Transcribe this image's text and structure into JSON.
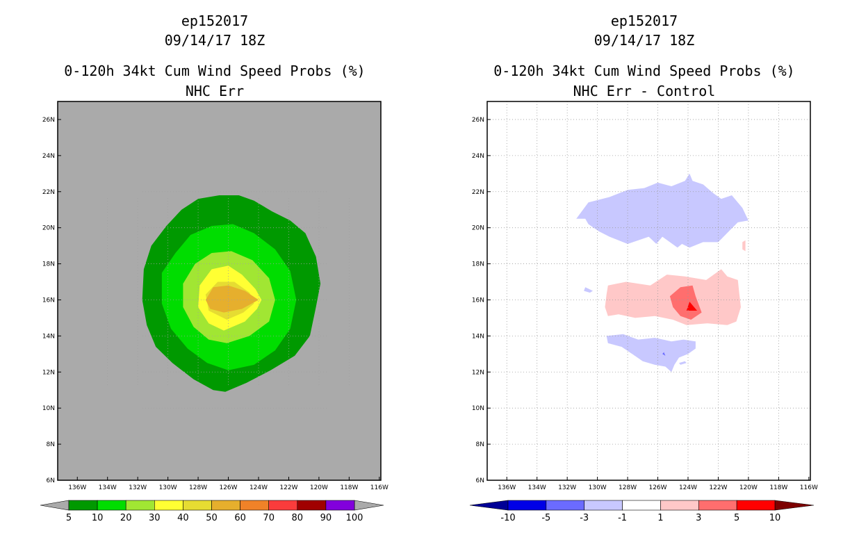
{
  "chart_data": [
    {
      "type": "filled-contour-map",
      "storm_id": "ep152017",
      "datetime": "09/14/17 18Z",
      "title": "0-120h 34kt Cum Wind Speed Probs (%)",
      "subtitle": "NHC Err",
      "background_color": "#aaaaaa",
      "lon_ticks": [
        "136W",
        "134W",
        "132W",
        "130W",
        "128W",
        "126W",
        "124W",
        "122W",
        "120W",
        "118W",
        "116W"
      ],
      "lat_ticks": [
        "6N",
        "8N",
        "10N",
        "12N",
        "14N",
        "16N",
        "18N",
        "20N",
        "22N",
        "24N",
        "26N"
      ],
      "lon_range": [
        -137.3,
        -115.9
      ],
      "lat_range": [
        6,
        27
      ],
      "grid": false,
      "colorbar": {
        "labels": [
          "5",
          "10",
          "20",
          "30",
          "40",
          "50",
          "60",
          "70",
          "80",
          "90",
          "100"
        ],
        "colors": [
          "#009900",
          "#00dd00",
          "#a1e633",
          "#ffff33",
          "#e6dc32",
          "#e6af2d",
          "#f08228",
          "#fa3c3c",
          "#a00000",
          "#8200dc"
        ],
        "under_color": "#aaaaaa",
        "over_color": "#aaaaaa"
      },
      "contours": [
        {
          "level": "5-10",
          "color": "#009900",
          "polygon": [
            [
              -126.2,
              10.9
            ],
            [
              -124.8,
              11.4
            ],
            [
              -123.2,
              12.1
            ],
            [
              -121.6,
              12.9
            ],
            [
              -120.6,
              14.0
            ],
            [
              -120.2,
              15.6
            ],
            [
              -119.9,
              16.9
            ],
            [
              -120.2,
              18.4
            ],
            [
              -120.9,
              19.7
            ],
            [
              -121.9,
              20.4
            ],
            [
              -123.1,
              20.9
            ],
            [
              -124.3,
              21.5
            ],
            [
              -125.3,
              21.8
            ],
            [
              -126.6,
              21.8
            ],
            [
              -128.0,
              21.6
            ],
            [
              -129.1,
              21.0
            ],
            [
              -130.1,
              20.1
            ],
            [
              -131.1,
              19.0
            ],
            [
              -131.6,
              17.7
            ],
            [
              -131.7,
              16.0
            ],
            [
              -131.4,
              14.6
            ],
            [
              -130.8,
              13.4
            ],
            [
              -129.7,
              12.5
            ],
            [
              -128.3,
              11.6
            ],
            [
              -127.0,
              11.0
            ]
          ]
        },
        {
          "level": "10-20",
          "color": "#00dd00",
          "polygon": [
            [
              -126.0,
              12.1
            ],
            [
              -124.3,
              12.4
            ],
            [
              -122.9,
              13.2
            ],
            [
              -121.9,
              14.4
            ],
            [
              -121.5,
              16.0
            ],
            [
              -121.9,
              17.6
            ],
            [
              -122.9,
              18.8
            ],
            [
              -124.3,
              19.7
            ],
            [
              -125.7,
              20.2
            ],
            [
              -127.1,
              20.1
            ],
            [
              -128.5,
              19.6
            ],
            [
              -129.5,
              18.6
            ],
            [
              -130.4,
              17.5
            ],
            [
              -130.4,
              15.8
            ],
            [
              -129.8,
              14.4
            ],
            [
              -128.7,
              13.3
            ],
            [
              -127.4,
              12.5
            ]
          ]
        },
        {
          "level": "20-30",
          "color": "#a1e633",
          "polygon": [
            [
              -126.1,
              13.6
            ],
            [
              -124.6,
              14.0
            ],
            [
              -123.3,
              14.8
            ],
            [
              -122.9,
              16.0
            ],
            [
              -123.3,
              17.2
            ],
            [
              -124.4,
              18.2
            ],
            [
              -125.8,
              18.7
            ],
            [
              -127.1,
              18.6
            ],
            [
              -128.2,
              18.0
            ],
            [
              -129.0,
              16.9
            ],
            [
              -129.0,
              15.6
            ],
            [
              -128.3,
              14.5
            ],
            [
              -127.3,
              13.8
            ]
          ]
        },
        {
          "level": "30-40",
          "color": "#ffff33",
          "polygon": [
            [
              -126.3,
              14.3
            ],
            [
              -124.9,
              14.8
            ],
            [
              -124.1,
              15.5
            ],
            [
              -123.8,
              16.0
            ],
            [
              -124.2,
              16.6
            ],
            [
              -125.1,
              17.4
            ],
            [
              -126.0,
              17.9
            ],
            [
              -127.1,
              17.7
            ],
            [
              -127.9,
              16.8
            ],
            [
              -128.0,
              15.6
            ],
            [
              -127.3,
              14.7
            ]
          ]
        },
        {
          "level": "40-50",
          "color": "#e6dc32",
          "polygon": [
            [
              -126.1,
              14.9
            ],
            [
              -125.0,
              15.3
            ],
            [
              -124.3,
              15.8
            ],
            [
              -124.6,
              16.4
            ],
            [
              -125.6,
              17.0
            ],
            [
              -126.7,
              17.0
            ],
            [
              -127.5,
              16.3
            ],
            [
              -127.3,
              15.4
            ]
          ]
        },
        {
          "level": "50-60",
          "color": "#e6af2d",
          "polygon": [
            [
              -126.3,
              15.3
            ],
            [
              -125.1,
              15.5
            ],
            [
              -124.0,
              16.0
            ],
            [
              -124.9,
              16.5
            ],
            [
              -126.0,
              16.8
            ],
            [
              -127.0,
              16.7
            ],
            [
              -127.5,
              16.0
            ],
            [
              -127.2,
              15.5
            ]
          ]
        }
      ]
    },
    {
      "type": "filled-contour-map",
      "storm_id": "ep152017",
      "datetime": "09/14/17 18Z",
      "title": "0-120h 34kt Cum Wind Speed Probs (%)",
      "subtitle": "NHC Err - Control",
      "background_color": "#ffffff",
      "lon_ticks": [
        "136W",
        "134W",
        "132W",
        "130W",
        "128W",
        "126W",
        "124W",
        "122W",
        "120W",
        "118W",
        "116W"
      ],
      "lat_ticks": [
        "6N",
        "8N",
        "10N",
        "12N",
        "14N",
        "16N",
        "18N",
        "20N",
        "22N",
        "24N",
        "26N"
      ],
      "lon_range": [
        -137.3,
        -115.9
      ],
      "lat_range": [
        6,
        27
      ],
      "grid": true,
      "colorbar": {
        "labels": [
          "-10",
          "-5",
          "-3",
          "-1",
          "1",
          "3",
          "5",
          "10"
        ],
        "colors": [
          "#0000e6",
          "#6b6bff",
          "#c8c8ff",
          "#ffffff",
          "#ffc8c8",
          "#ff6e6e",
          "#ff0000"
        ],
        "under_color": "#000096",
        "over_color": "#7d0000"
      },
      "contours": [
        {
          "level": "-3 to -1",
          "color": "#c8c8ff",
          "polygon": [
            [
              -131.4,
              20.5
            ],
            [
              -130.6,
              21.4
            ],
            [
              -129.2,
              21.7
            ],
            [
              -128.0,
              22.1
            ],
            [
              -126.9,
              22.2
            ],
            [
              -126.0,
              22.5
            ],
            [
              -125.1,
              22.3
            ],
            [
              -124.2,
              22.6
            ],
            [
              -123.9,
              23.0
            ],
            [
              -123.7,
              22.6
            ],
            [
              -123.0,
              22.4
            ],
            [
              -122.3,
              21.9
            ],
            [
              -121.8,
              21.6
            ],
            [
              -121.1,
              21.8
            ],
            [
              -120.4,
              21.1
            ],
            [
              -120.0,
              20.4
            ],
            [
              -120.7,
              20.3
            ],
            [
              -121.3,
              19.8
            ],
            [
              -122.0,
              19.2
            ],
            [
              -123.0,
              19.2
            ],
            [
              -123.9,
              18.9
            ],
            [
              -124.4,
              19.1
            ],
            [
              -124.7,
              18.9
            ],
            [
              -125.7,
              19.5
            ],
            [
              -126.1,
              19.1
            ],
            [
              -126.6,
              19.5
            ],
            [
              -128.0,
              19.1
            ],
            [
              -129.2,
              19.5
            ],
            [
              -129.9,
              19.8
            ],
            [
              -130.6,
              20.2
            ],
            [
              -130.8,
              20.5
            ]
          ]
        },
        {
          "level": "-3 to -1",
          "color": "#c8c8ff",
          "polygon": [
            [
              -129.4,
              14.0
            ],
            [
              -128.3,
              14.1
            ],
            [
              -127.3,
              13.8
            ],
            [
              -126.2,
              13.9
            ],
            [
              -125.1,
              13.7
            ],
            [
              -124.3,
              13.8
            ],
            [
              -123.5,
              13.7
            ],
            [
              -123.5,
              13.3
            ],
            [
              -124.0,
              13.0
            ],
            [
              -124.6,
              12.8
            ],
            [
              -124.9,
              12.4
            ],
            [
              -125.1,
              12.0
            ],
            [
              -125.5,
              12.3
            ],
            [
              -126.2,
              12.4
            ],
            [
              -127.0,
              12.6
            ],
            [
              -127.7,
              13.0
            ],
            [
              -128.4,
              13.4
            ],
            [
              -129.3,
              13.6
            ]
          ]
        },
        {
          "level": "-3 to -1",
          "color": "#c8c8ff",
          "polygon": [
            [
              -124.5,
              12.4
            ],
            [
              -124.1,
              12.5
            ],
            [
              -124.2,
              12.6
            ],
            [
              -124.6,
              12.5
            ]
          ]
        },
        {
          "level": "-3 to -1",
          "color": "#c8c8ff",
          "polygon": [
            [
              -130.8,
              16.7
            ],
            [
              -130.3,
              16.5
            ],
            [
              -130.5,
              16.4
            ],
            [
              -130.9,
              16.5
            ]
          ]
        },
        {
          "level": "-5 to -3",
          "color": "#6b6bff",
          "polygon": [
            [
              -125.7,
              13.0
            ],
            [
              -125.5,
              12.9
            ],
            [
              -125.6,
              13.1
            ]
          ]
        },
        {
          "level": "1 to 3",
          "color": "#ffc8c8",
          "polygon": [
            [
              -129.3,
              16.8
            ],
            [
              -128.1,
              17.0
            ],
            [
              -126.5,
              16.8
            ],
            [
              -125.4,
              17.4
            ],
            [
              -124.2,
              17.3
            ],
            [
              -122.8,
              17.1
            ],
            [
              -121.8,
              17.7
            ],
            [
              -121.4,
              17.3
            ],
            [
              -120.7,
              17.1
            ],
            [
              -120.6,
              16.3
            ],
            [
              -120.5,
              15.6
            ],
            [
              -120.8,
              14.8
            ],
            [
              -121.4,
              14.6
            ],
            [
              -122.7,
              14.7
            ],
            [
              -124.1,
              14.6
            ],
            [
              -125.0,
              14.9
            ],
            [
              -126.2,
              15.1
            ],
            [
              -127.5,
              15.0
            ],
            [
              -128.6,
              15.2
            ],
            [
              -129.3,
              15.1
            ],
            [
              -129.5,
              15.6
            ],
            [
              -129.4,
              16.3
            ]
          ]
        },
        {
          "level": "1 to 3",
          "color": "#ffc8c8",
          "polygon": [
            [
              -120.4,
              19.2
            ],
            [
              -120.2,
              19.3
            ],
            [
              -120.2,
              18.7
            ],
            [
              -120.4,
              18.8
            ]
          ]
        },
        {
          "level": "3 to 5",
          "color": "#ff6e6e",
          "polygon": [
            [
              -125.0,
              15.6
            ],
            [
              -124.5,
              15.1
            ],
            [
              -123.8,
              14.9
            ],
            [
              -123.1,
              15.3
            ],
            [
              -123.5,
              16.2
            ],
            [
              -123.7,
              16.8
            ],
            [
              -124.5,
              16.7
            ],
            [
              -125.2,
              16.2
            ]
          ]
        },
        {
          "level": "5 to 10",
          "color": "#ff0000",
          "polygon": [
            [
              -124.1,
              15.4
            ],
            [
              -123.4,
              15.4
            ],
            [
              -123.9,
              15.9
            ]
          ]
        }
      ]
    }
  ]
}
